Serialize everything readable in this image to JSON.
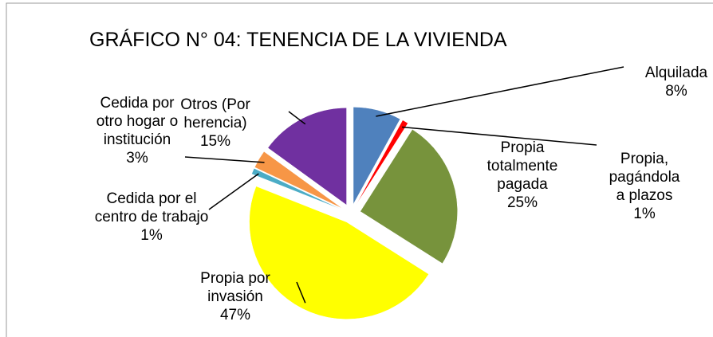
{
  "chart_data": {
    "type": "pie",
    "title": "GRÁFICO N° 04: TENENCIA DE LA VIVIENDA",
    "categories": [
      "Alquilada",
      "Propia, pagándola a plazos",
      "Propia totalmente pagada",
      "Propia por invasión",
      "Cedida por el centro de trabajo",
      "Cedida por otro hogar o institución",
      "Otros (Por herencia)"
    ],
    "values": [
      8,
      1,
      25,
      47,
      1,
      3,
      15
    ],
    "value_labels": [
      "8%",
      "1%",
      "25%",
      "47%",
      "1%",
      "3%",
      "15%"
    ],
    "colors": [
      "#4f81bd",
      "#ff0000",
      "#77933c",
      "#ffff00",
      "#4bacc6",
      "#f79646",
      "#7030a0"
    ]
  }
}
